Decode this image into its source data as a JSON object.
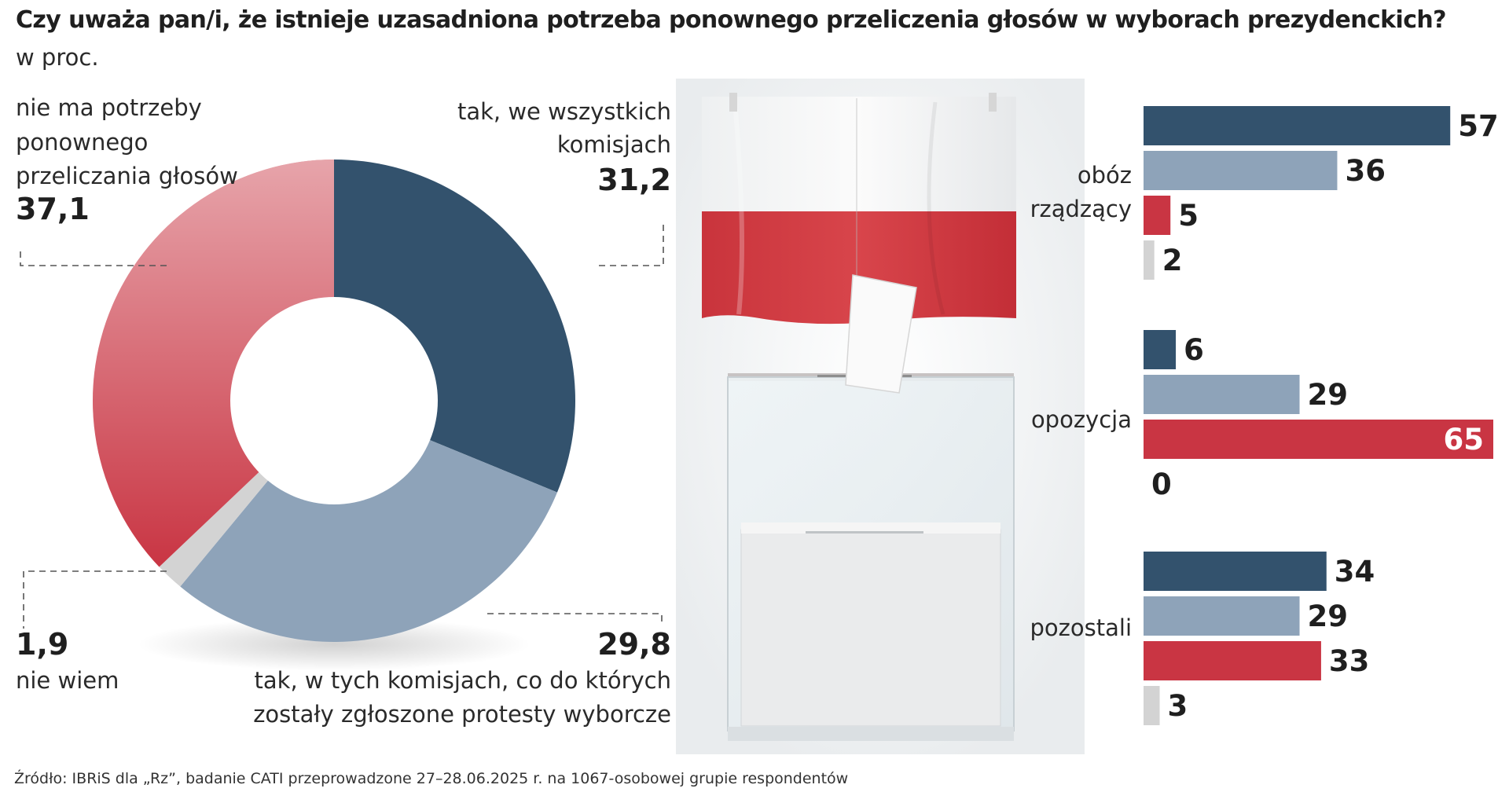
{
  "title": "Czy uważa pan/i, że istnieje uzasadniona potrzeba ponownego przeliczenia głosów w wyborach prezydenckich?",
  "subtitle": "w proc.",
  "source": "Źródło: IBRiS dla „Rz”, badanie CATI przeprowadzone 27–28.06.2025 r. na 1067-osobowej grupie respondentów",
  "colors": {
    "navy": "#33526d",
    "lightblue": "#8ea3b9",
    "red": "#c93543",
    "grey": "#d3d3d3"
  },
  "chart_data": [
    {
      "type": "pie",
      "style": "donut",
      "slices": [
        {
          "label_lines": [
            "tak, we wszystkich",
            "komisjach"
          ],
          "value": 31.2,
          "value_text": "31,2",
          "color": "#33526d"
        },
        {
          "label_lines": [
            "tak, w tych komisjach, co do których",
            "zostały zgłoszone protesty wyborcze"
          ],
          "value": 29.8,
          "value_text": "29,8",
          "color": "#8ea3b9"
        },
        {
          "label_lines": [
            "nie wiem"
          ],
          "value": 1.9,
          "value_text": "1,9",
          "color": "#d3d3d3"
        },
        {
          "label_lines": [
            "nie ma potrzeby",
            "ponownego",
            "przeliczania głosów"
          ],
          "value": 37.1,
          "value_text": "37,1",
          "color": "#c93543"
        }
      ]
    },
    {
      "type": "bar",
      "orientation": "horizontal",
      "xlim": [
        0,
        65
      ],
      "series_colors": [
        "#33526d",
        "#8ea3b9",
        "#c93543",
        "#d3d3d3"
      ],
      "groups": [
        {
          "label_lines": [
            "obóz",
            "rządzący"
          ],
          "values": [
            57,
            36,
            5,
            2
          ]
        },
        {
          "label_lines": [
            "opozycja"
          ],
          "values": [
            6,
            29,
            65,
            0
          ]
        },
        {
          "label_lines": [
            "pozostali"
          ],
          "values": [
            34,
            29,
            33,
            3
          ]
        }
      ]
    }
  ]
}
